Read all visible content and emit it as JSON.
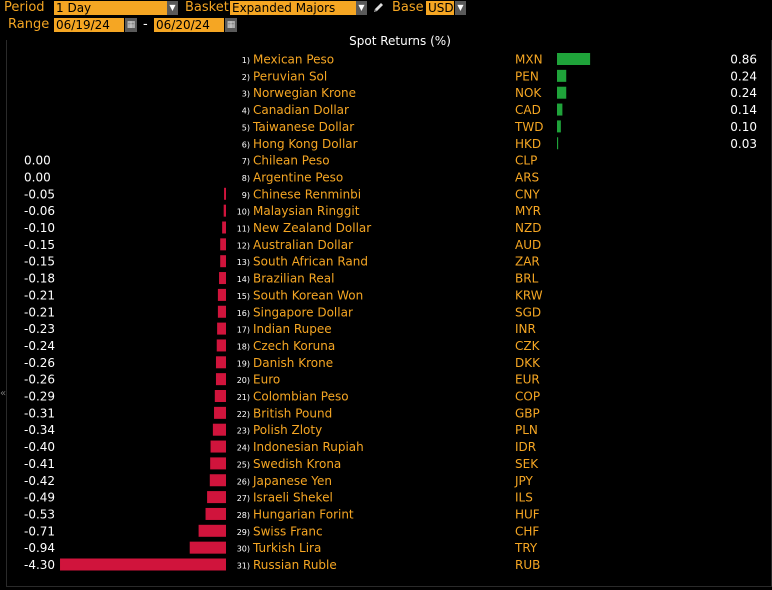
{
  "toolbar": {
    "period_label": "Period",
    "period_value": "1 Day",
    "basket_label": "Basket",
    "basket_value": "Expanded Majors",
    "base_label": "Base",
    "base_value": "USD",
    "range_label": "Range",
    "range_start": "06/19/24",
    "range_separator": "-",
    "range_end": "06/20/24"
  },
  "colors": {
    "accent": "#f5a623",
    "positive_bar": "#1fa33a",
    "negative_bar": "#d0143c",
    "name_text": "#f5a623",
    "value_text": "#ffffff"
  },
  "chart_data": {
    "type": "bar",
    "title": "Spot Returns (%)",
    "ranks": [
      1,
      2,
      3,
      4,
      5,
      6,
      7,
      8,
      9,
      10,
      11,
      12,
      13,
      14,
      15,
      16,
      17,
      18,
      19,
      20,
      21,
      22,
      23,
      24,
      25,
      26,
      27,
      28,
      29,
      30,
      31
    ],
    "categories": [
      "Mexican Peso",
      "Peruvian Sol",
      "Norwegian Krone",
      "Canadian Dollar",
      "Taiwanese Dollar",
      "Hong Kong Dollar",
      "Chilean Peso",
      "Argentine Peso",
      "Chinese Renminbi",
      "Malaysian Ringgit",
      "New Zealand Dollar",
      "Australian Dollar",
      "South African Rand",
      "Brazilian Real",
      "South Korean Won",
      "Singapore Dollar",
      "Indian Rupee",
      "Czech Koruna",
      "Danish Krone",
      "Euro",
      "Colombian Peso",
      "British Pound",
      "Polish Zloty",
      "Indonesian Rupiah",
      "Swedish Krona",
      "Japanese Yen",
      "Israeli Shekel",
      "Hungarian Forint",
      "Swiss Franc",
      "Turkish Lira",
      "Russian Ruble"
    ],
    "codes": [
      "MXN",
      "PEN",
      "NOK",
      "CAD",
      "TWD",
      "HKD",
      "CLP",
      "ARS",
      "CNY",
      "MYR",
      "NZD",
      "AUD",
      "ZAR",
      "BRL",
      "KRW",
      "SGD",
      "INR",
      "CZK",
      "DKK",
      "EUR",
      "COP",
      "GBP",
      "PLN",
      "IDR",
      "SEK",
      "JPY",
      "ILS",
      "HUF",
      "CHF",
      "TRY",
      "RUB"
    ],
    "values": [
      0.86,
      0.24,
      0.24,
      0.14,
      0.1,
      0.03,
      0.0,
      0.0,
      -0.05,
      -0.06,
      -0.1,
      -0.15,
      -0.15,
      -0.18,
      -0.21,
      -0.21,
      -0.23,
      -0.24,
      -0.26,
      -0.26,
      -0.29,
      -0.31,
      -0.34,
      -0.4,
      -0.41,
      -0.42,
      -0.49,
      -0.53,
      -0.71,
      -0.94,
      -4.3
    ],
    "value_labels": [
      "0.86",
      "0.24",
      "0.24",
      "0.14",
      "0.10",
      "0.03",
      "0.00",
      "0.00",
      "-0.05",
      "-0.06",
      "-0.10",
      "-0.15",
      "-0.15",
      "-0.18",
      "-0.21",
      "-0.21",
      "-0.23",
      "-0.24",
      "-0.26",
      "-0.26",
      "-0.29",
      "-0.31",
      "-0.34",
      "-0.40",
      "-0.41",
      "-0.42",
      "-0.49",
      "-0.53",
      "-0.71",
      "-0.94",
      "-4.30"
    ]
  }
}
